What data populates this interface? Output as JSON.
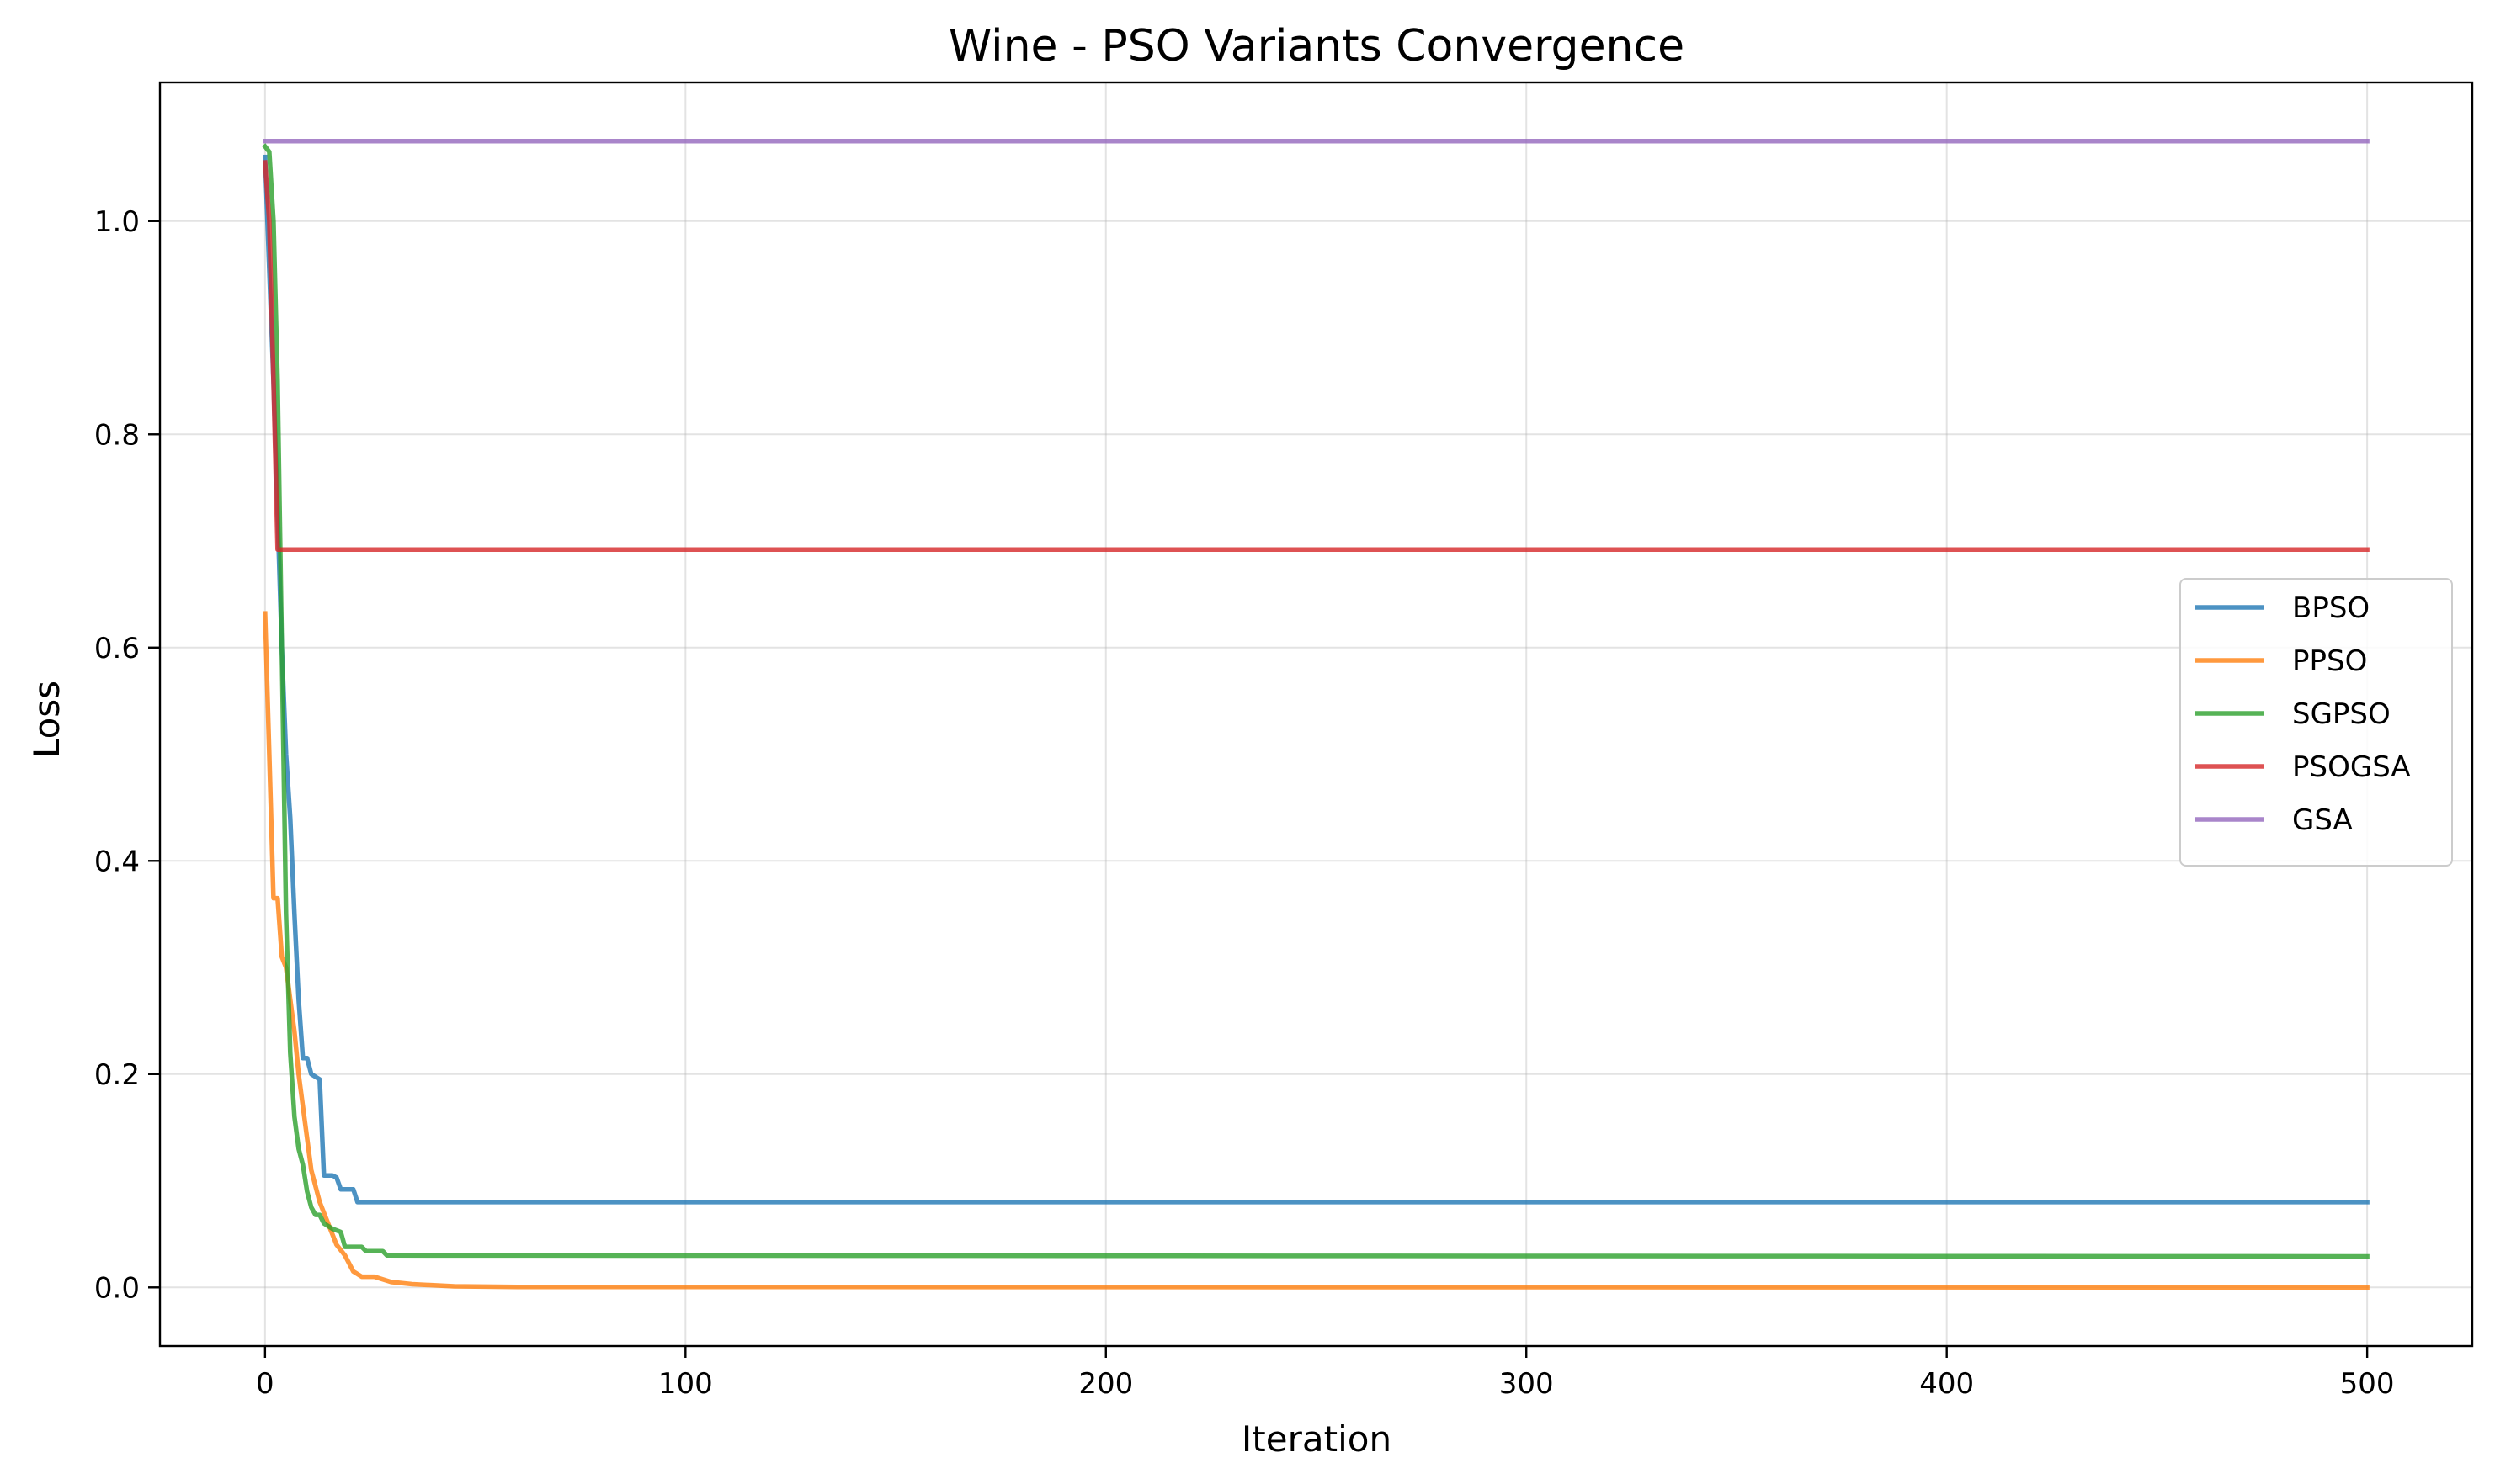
{
  "chart_data": {
    "type": "line",
    "title": "Wine - PSO Variants Convergence",
    "xlabel": "Iteration",
    "ylabel": "Loss",
    "xlim": [
      -25,
      525
    ],
    "ylim": [
      -0.055,
      1.13
    ],
    "xticks": [
      0,
      100,
      200,
      300,
      400,
      500
    ],
    "xtick_labels": [
      "0",
      "100",
      "200",
      "300",
      "400",
      "500"
    ],
    "yticks": [
      0.0,
      0.2,
      0.4,
      0.6,
      0.8,
      1.0
    ],
    "ytick_labels": [
      "0.0",
      "0.2",
      "0.4",
      "0.6",
      "0.8",
      "1.0"
    ],
    "grid": true,
    "legend_position": "center-right",
    "series": [
      {
        "name": "BPSO",
        "color": "#1f77b4",
        "points": [
          [
            0,
            1.06
          ],
          [
            2,
            0.85
          ],
          [
            4,
            0.6
          ],
          [
            5,
            0.5
          ],
          [
            6,
            0.44
          ],
          [
            7,
            0.35
          ],
          [
            8,
            0.27
          ],
          [
            9,
            0.215
          ],
          [
            10,
            0.215
          ],
          [
            11,
            0.2
          ],
          [
            13,
            0.195
          ],
          [
            14,
            0.105
          ],
          [
            16,
            0.105
          ],
          [
            17,
            0.103
          ],
          [
            18,
            0.092
          ],
          [
            21,
            0.092
          ],
          [
            22,
            0.08
          ],
          [
            500,
            0.08
          ]
        ]
      },
      {
        "name": "PPSO",
        "color": "#ff7f0e",
        "points": [
          [
            0,
            0.632
          ],
          [
            1,
            0.5
          ],
          [
            2,
            0.365
          ],
          [
            3,
            0.365
          ],
          [
            4,
            0.31
          ],
          [
            5,
            0.3
          ],
          [
            6,
            0.27
          ],
          [
            7,
            0.24
          ],
          [
            8,
            0.2
          ],
          [
            9,
            0.17
          ],
          [
            10,
            0.14
          ],
          [
            11,
            0.11
          ],
          [
            12,
            0.095
          ],
          [
            13,
            0.08
          ],
          [
            15,
            0.06
          ],
          [
            17,
            0.04
          ],
          [
            19,
            0.03
          ],
          [
            21,
            0.015
          ],
          [
            23,
            0.01
          ],
          [
            26,
            0.01
          ],
          [
            30,
            0.005
          ],
          [
            35,
            0.003
          ],
          [
            45,
            0.001
          ],
          [
            60,
            0.0005
          ],
          [
            500,
            0.0
          ]
        ]
      },
      {
        "name": "SGPSO",
        "color": "#2ca02c",
        "points": [
          [
            0,
            1.07
          ],
          [
            1,
            1.065
          ],
          [
            2,
            1.0
          ],
          [
            3,
            0.85
          ],
          [
            4,
            0.6
          ],
          [
            5,
            0.35
          ],
          [
            6,
            0.22
          ],
          [
            7,
            0.16
          ],
          [
            8,
            0.13
          ],
          [
            9,
            0.115
          ],
          [
            10,
            0.09
          ],
          [
            11,
            0.075
          ],
          [
            12,
            0.068
          ],
          [
            13,
            0.068
          ],
          [
            14,
            0.06
          ],
          [
            16,
            0.055
          ],
          [
            18,
            0.052
          ],
          [
            19,
            0.038
          ],
          [
            23,
            0.038
          ],
          [
            24,
            0.034
          ],
          [
            28,
            0.034
          ],
          [
            29,
            0.03
          ],
          [
            500,
            0.029
          ]
        ]
      },
      {
        "name": "PSOGSA",
        "color": "#d62728",
        "points": [
          [
            0,
            1.055
          ],
          [
            1,
            1.0
          ],
          [
            2,
            0.85
          ],
          [
            3,
            0.692
          ],
          [
            500,
            0.692
          ]
        ]
      },
      {
        "name": "GSA",
        "color": "#9467bd",
        "points": [
          [
            0,
            1.075
          ],
          [
            500,
            1.075
          ]
        ]
      }
    ]
  }
}
